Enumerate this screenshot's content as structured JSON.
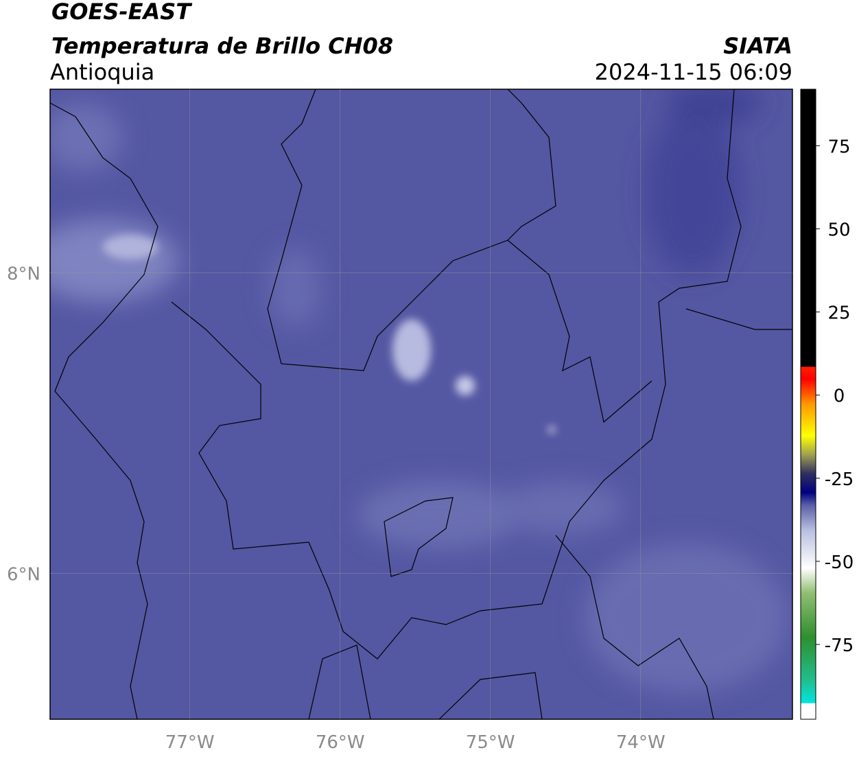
{
  "header": {
    "satellite": "GOES-EAST",
    "product": "Temperatura de Brillo CH08",
    "region": "Antioquia",
    "source": "SIATA",
    "datetime": "2024-11-15 06:09"
  },
  "map": {
    "xlim": [
      -77.93,
      -72.99
    ],
    "ylim": [
      5.03,
      9.22
    ],
    "xticks": [
      {
        "value": -77,
        "label": "77°W"
      },
      {
        "value": -76,
        "label": "76°W"
      },
      {
        "value": -75,
        "label": "75°W"
      },
      {
        "value": -74,
        "label": "74°W"
      }
    ],
    "yticks": [
      {
        "value": 6,
        "label": "6°N"
      },
      {
        "value": 8,
        "label": "8°N"
      }
    ],
    "grid": true
  },
  "colorbar": {
    "lim": [
      -97.5,
      92
    ],
    "ticks": [
      -75,
      -50,
      -25,
      0,
      25,
      50,
      75
    ]
  }
}
